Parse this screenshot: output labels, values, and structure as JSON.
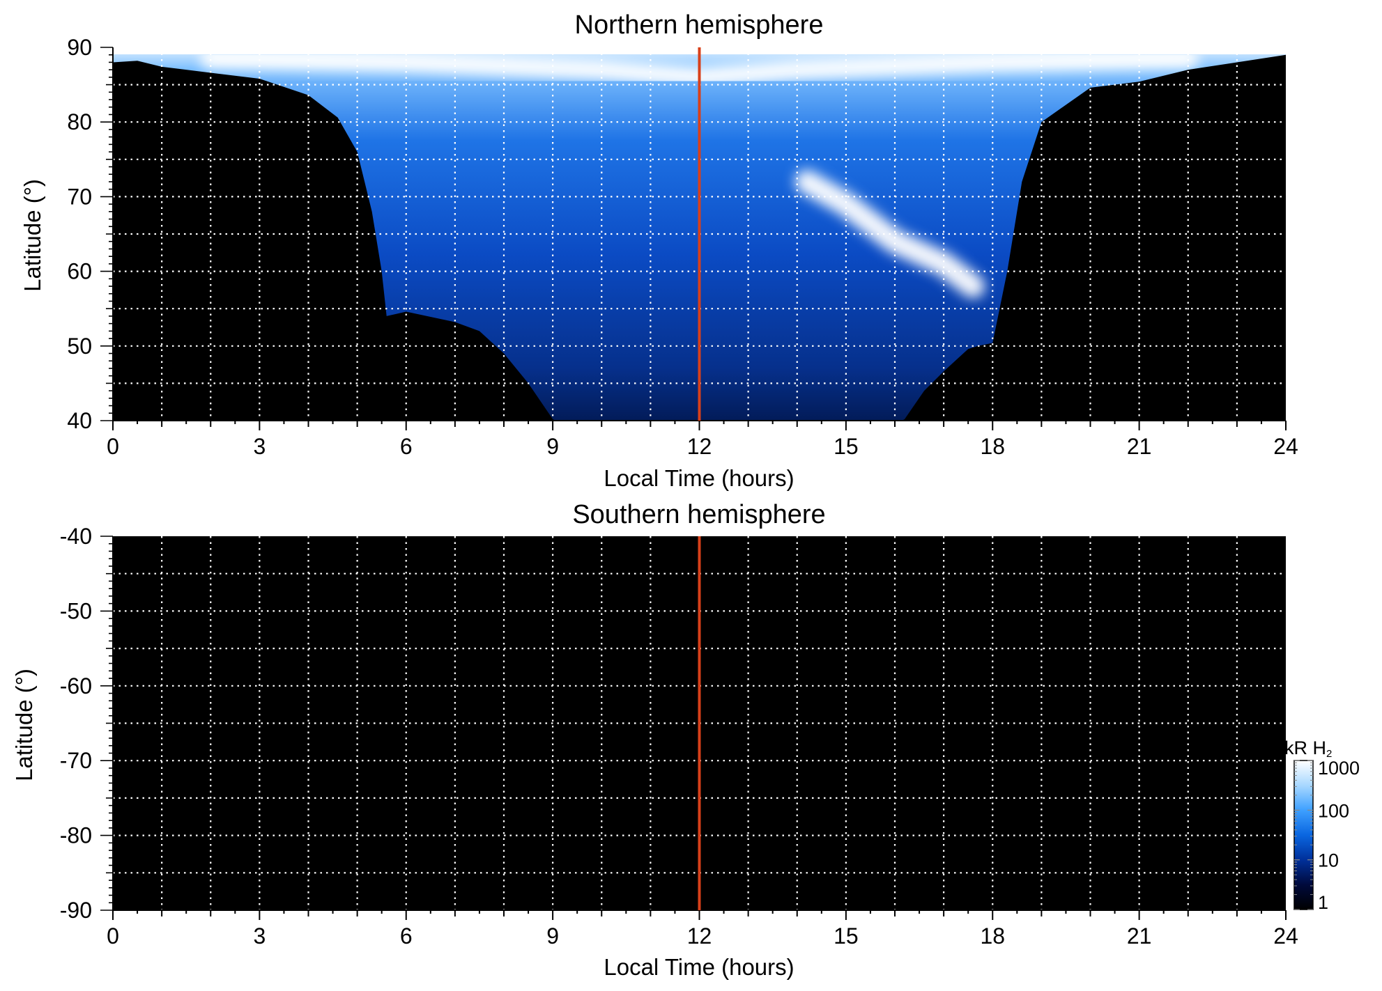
{
  "chart_data": [
    {
      "type": "heatmap",
      "title": "Northern hemisphere",
      "xlabel": "Local Time (hours)",
      "ylabel": "Latitude (°)",
      "xlim": [
        0,
        24
      ],
      "ylim": [
        40,
        90
      ],
      "x_ticks": [
        "0",
        "3",
        "6",
        "9",
        "12",
        "15",
        "18",
        "21",
        "24"
      ],
      "x_tick_values": [
        0,
        3,
        6,
        9,
        12,
        15,
        18,
        21,
        24
      ],
      "y_ticks": [
        "40",
        "50",
        "60",
        "70",
        "80",
        "90"
      ],
      "y_tick_values": [
        40,
        50,
        60,
        70,
        80,
        90
      ],
      "grid": true,
      "grid_x_step": 1,
      "grid_y_step": 5,
      "background_color": "#000000",
      "reference_line": {
        "x": 12,
        "color": "#d8401a"
      },
      "coverage_boundary": {
        "x": [
          0.0,
          0.5,
          1.0,
          2.0,
          3.0,
          4.0,
          4.6,
          5.0,
          5.3,
          5.5,
          5.6,
          5.8,
          6.0,
          7.0,
          7.5,
          8.0,
          8.5,
          9.0,
          9.2,
          10.0,
          12.0,
          14.0,
          15.0,
          16.0,
          16.2,
          16.6,
          17.0,
          17.5,
          17.7,
          18.0,
          18.3,
          18.6,
          19.0,
          20.0,
          21.0,
          22.0,
          23.0,
          24.0
        ],
        "y": [
          88.0,
          88.2,
          87.4,
          86.6,
          85.8,
          83.6,
          80.6,
          76.0,
          68.0,
          60.0,
          54.0,
          54.3,
          54.6,
          53.2,
          52.0,
          49.0,
          45.0,
          40.2,
          39.5,
          39.5,
          39.5,
          39.5,
          39.5,
          39.5,
          40.2,
          44.0,
          46.6,
          49.6,
          50.0,
          50.4,
          60.0,
          72.0,
          80.0,
          84.6,
          85.4,
          87.0,
          88.0,
          89.0
        ]
      },
      "emission_features": [
        {
          "description": "bright auroral arc",
          "x": [
            14.2,
            15.0,
            16.0,
            17.0,
            17.6
          ],
          "y": [
            72.0,
            69.0,
            64.0,
            61.0,
            58.0
          ],
          "color": "#ffffff"
        },
        {
          "description": "bright polar cap",
          "x": [
            2.0,
            6.0,
            10.0,
            12.0,
            14.0,
            18.0,
            22.0
          ],
          "y": [
            88.5,
            88.0,
            87.0,
            86.0,
            87.0,
            88.0,
            88.5
          ],
          "color": "#ffffff"
        }
      ]
    },
    {
      "type": "heatmap",
      "title": "Southern hemisphere",
      "xlabel": "Local Time (hours)",
      "ylabel": "Latitude (°)",
      "xlim": [
        0,
        24
      ],
      "ylim": [
        -90,
        -40
      ],
      "x_ticks": [
        "0",
        "3",
        "6",
        "9",
        "12",
        "15",
        "18",
        "21",
        "24"
      ],
      "x_tick_values": [
        0,
        3,
        6,
        9,
        12,
        15,
        18,
        21,
        24
      ],
      "y_ticks": [
        "-40",
        "-50",
        "-60",
        "-70",
        "-80",
        "-90"
      ],
      "y_tick_values": [
        -40,
        -50,
        -60,
        -70,
        -80,
        -90
      ],
      "grid": true,
      "grid_x_step": 1,
      "grid_y_step": 5,
      "background_color": "#000000",
      "reference_line": {
        "x": 12,
        "color": "#d8401a"
      },
      "coverage": "none"
    }
  ],
  "colorbar": {
    "title_main": "kR H",
    "title_sub": "2",
    "scale": "log",
    "range": [
      1,
      1000
    ],
    "ticks": [
      "1000",
      "100",
      "10",
      "1"
    ],
    "tick_values": [
      1000,
      100,
      10,
      1
    ],
    "colors": [
      "#000000",
      "#000a3c",
      "#00309a",
      "#0a66e0",
      "#3ea0ff",
      "#a8d8ff",
      "#ffffff"
    ]
  }
}
